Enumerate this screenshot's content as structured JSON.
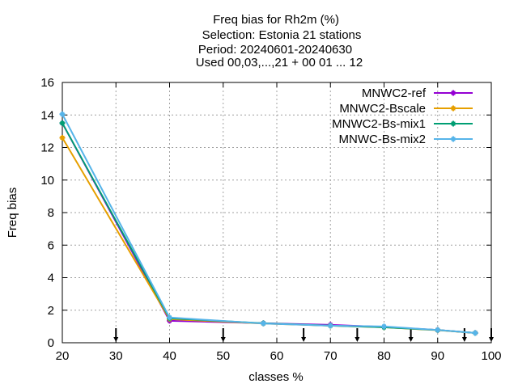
{
  "chart_data": {
    "type": "line",
    "title_lines": [
      "Freq bias  for Rh2m (%)",
      "Selection: Estonia     21 stations",
      "Period: 20240601-20240630",
      "Used 00,03,...,21 + 00 01 ... 12"
    ],
    "xlabel": "classes %",
    "ylabel": "Freq bias",
    "xlim": [
      20,
      100
    ],
    "ylim": [
      0,
      16
    ],
    "xticks": [
      20,
      30,
      40,
      50,
      60,
      70,
      80,
      90,
      100
    ],
    "yticks": [
      0,
      2,
      4,
      6,
      8,
      10,
      12,
      14,
      16
    ],
    "grid": true,
    "legend_position": "top-right",
    "arrow_markers_x": [
      30,
      50,
      65,
      75,
      85,
      95,
      100
    ],
    "series": [
      {
        "name": "MNWC2-ref",
        "color": "#9400d3",
        "x": [
          20,
          40,
          57.5,
          70,
          80,
          90,
          97
        ],
        "y": [
          13.5,
          1.35,
          1.2,
          1.1,
          0.97,
          0.78,
          0.6
        ]
      },
      {
        "name": "MNWC2-Bscale",
        "color": "#e69f00",
        "x": [
          20,
          40,
          57.5,
          70,
          80,
          90,
          97
        ],
        "y": [
          12.6,
          1.45,
          1.18,
          1.05,
          0.95,
          0.77,
          0.6
        ]
      },
      {
        "name": "MNWC2-Bs-mix1",
        "color": "#009e73",
        "x": [
          20,
          40,
          57.5,
          70,
          80,
          90,
          97
        ],
        "y": [
          13.5,
          1.5,
          1.2,
          1.05,
          0.95,
          0.78,
          0.6
        ]
      },
      {
        "name": "MNWC-Bs-mix2",
        "color": "#56b4e9",
        "x": [
          20,
          40,
          57.5,
          70,
          80,
          90,
          97
        ],
        "y": [
          14.05,
          1.55,
          1.18,
          1.05,
          1.0,
          0.78,
          0.6
        ]
      }
    ]
  }
}
